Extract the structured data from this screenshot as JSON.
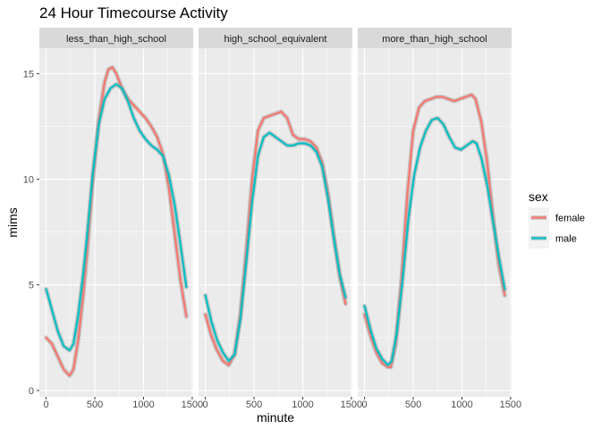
{
  "chart_data": {
    "type": "line",
    "title": "24 Hour Timecourse Activity",
    "xlabel": "minute",
    "ylabel": "mims",
    "xlim": [
      -70,
      1510
    ],
    "ylim": [
      -0.3,
      16.2
    ],
    "x_ticks": [
      0,
      500,
      1000,
      1500
    ],
    "x_tick_labels": [
      "0",
      "500",
      "1000",
      "1500"
    ],
    "y_ticks": [
      0,
      5,
      10,
      15
    ],
    "y_tick_labels": [
      "0",
      "5",
      "10",
      "15"
    ],
    "grid": true,
    "legend": {
      "title": "sex",
      "position": "right",
      "entries": [
        "female",
        "male"
      ]
    },
    "colors": {
      "female": "#F8766D",
      "male": "#00BFC4",
      "panel_bg": "#EBEBEB",
      "strip_bg": "#D9D9D9",
      "grid": "#FFFFFF"
    },
    "panels": [
      {
        "strip": "less_than_high_school",
        "series": [
          {
            "name": "female",
            "x": [
              0,
              60,
              120,
              180,
              240,
              280,
              330,
              380,
              420,
              480,
              540,
              600,
              640,
              680,
              720,
              780,
              840,
              900,
              960,
              1020,
              1080,
              1140,
              1200,
              1260,
              1320,
              1380,
              1440
            ],
            "y": [
              2.5,
              2.2,
              1.6,
              1.0,
              0.7,
              1.0,
              2.4,
              4.5,
              6.5,
              10.0,
              12.8,
              14.6,
              15.2,
              15.3,
              15.0,
              14.3,
              13.8,
              13.5,
              13.2,
              12.9,
              12.5,
              12.0,
              11.2,
              9.6,
              7.4,
              5.2,
              3.5
            ]
          },
          {
            "name": "male",
            "x": [
              0,
              60,
              120,
              180,
              240,
              280,
              330,
              380,
              420,
              480,
              540,
              600,
              660,
              720,
              780,
              840,
              900,
              960,
              1020,
              1080,
              1140,
              1200,
              1260,
              1320,
              1380,
              1440
            ],
            "y": [
              4.8,
              3.8,
              2.8,
              2.1,
              1.9,
              2.2,
              3.6,
              5.5,
              7.3,
              10.3,
              12.6,
              13.8,
              14.3,
              14.5,
              14.3,
              13.7,
              12.9,
              12.3,
              11.9,
              11.6,
              11.4,
              11.1,
              10.2,
              8.8,
              6.9,
              4.9
            ]
          }
        ]
      },
      {
        "strip": "high_school_equivalent",
        "series": [
          {
            "name": "female",
            "x": [
              0,
              60,
              120,
              180,
              240,
              300,
              360,
              420,
              480,
              540,
              600,
              660,
              720,
              780,
              840,
              900,
              960,
              1020,
              1080,
              1140,
              1200,
              1260,
              1320,
              1380,
              1440
            ],
            "y": [
              3.6,
              2.6,
              1.9,
              1.4,
              1.2,
              1.7,
              3.6,
              6.6,
              10.0,
              12.3,
              12.9,
              13.0,
              13.1,
              13.2,
              12.9,
              12.1,
              11.9,
              11.9,
              11.8,
              11.5,
              10.8,
              9.3,
              7.3,
              5.4,
              4.1
            ]
          },
          {
            "name": "male",
            "x": [
              0,
              60,
              120,
              180,
              240,
              300,
              360,
              420,
              480,
              540,
              600,
              660,
              720,
              780,
              840,
              900,
              960,
              1020,
              1080,
              1140,
              1200,
              1260,
              1320,
              1380,
              1440
            ],
            "y": [
              4.5,
              3.3,
              2.4,
              1.8,
              1.4,
              1.7,
              3.4,
              6.1,
              8.9,
              11.1,
              12.0,
              12.2,
              12.0,
              11.8,
              11.6,
              11.6,
              11.7,
              11.7,
              11.6,
              11.3,
              10.6,
              9.1,
              7.2,
              5.5,
              4.4
            ]
          }
        ]
      },
      {
        "strip": "more_than_high_school",
        "series": [
          {
            "name": "female",
            "x": [
              0,
              60,
              120,
              180,
              240,
              270,
              320,
              380,
              440,
              500,
              560,
              620,
              680,
              740,
              800,
              860,
              920,
              980,
              1040,
              1100,
              1140,
              1200,
              1260,
              1320,
              1380,
              1440
            ],
            "y": [
              3.6,
              2.6,
              1.8,
              1.3,
              1.1,
              1.1,
              2.2,
              5.3,
              9.3,
              12.3,
              13.4,
              13.7,
              13.8,
              13.9,
              13.9,
              13.8,
              13.7,
              13.8,
              13.9,
              14.0,
              13.8,
              12.7,
              10.8,
              8.2,
              5.9,
              4.5
            ]
          },
          {
            "name": "male",
            "x": [
              0,
              60,
              120,
              180,
              240,
              280,
              330,
              390,
              450,
              510,
              570,
              630,
              690,
              750,
              810,
              870,
              930,
              990,
              1050,
              1110,
              1150,
              1200,
              1260,
              1320,
              1380,
              1440
            ],
            "y": [
              4.0,
              2.9,
              2.0,
              1.5,
              1.2,
              1.4,
              2.7,
              5.2,
              8.1,
              10.2,
              11.5,
              12.3,
              12.8,
              12.9,
              12.6,
              12.0,
              11.5,
              11.4,
              11.6,
              11.8,
              11.7,
              11.0,
              9.7,
              8.0,
              6.3,
              4.8
            ]
          }
        ]
      }
    ]
  }
}
